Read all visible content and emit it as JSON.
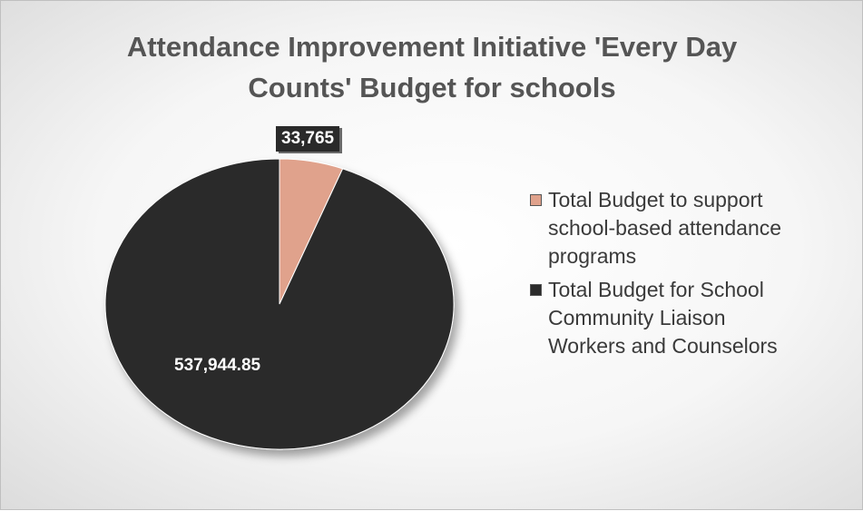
{
  "chart_data": {
    "type": "pie",
    "title_lines": [
      "Attendance Improvement Initiative 'Every Day",
      "Counts' Budget for schools"
    ],
    "slices": [
      {
        "label": "Total Budget to support school-based attendance programs",
        "legend_lines": [
          "Total Budget to support",
          "school-based attendance",
          "programs"
        ],
        "value": 33765,
        "display_value": "33,765",
        "color": "#e0a28c"
      },
      {
        "label": "Total Budget for School Community Liaison Workers and Counselors",
        "legend_lines": [
          "Total Budget for School",
          "Community Liaison",
          "Workers and Counselors"
        ],
        "value": 537944.85,
        "display_value": "537,944.85",
        "color": "#2b2b2b"
      }
    ],
    "legend_position": "right"
  }
}
